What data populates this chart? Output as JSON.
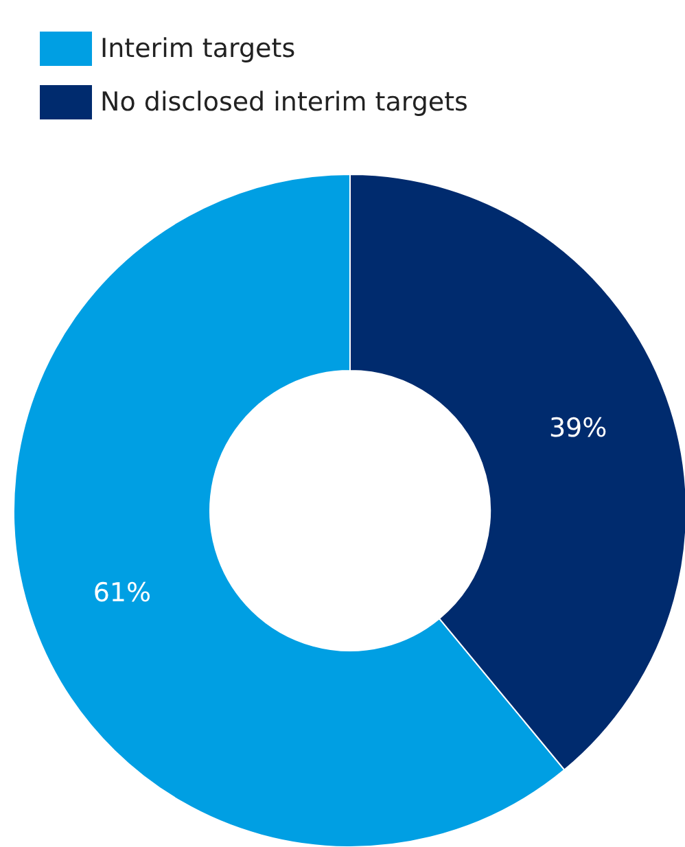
{
  "chart_data": {
    "type": "donut",
    "categories": [
      "Interim targets",
      "No disclosed interim targets"
    ],
    "values": [
      61,
      39
    ],
    "value_labels": [
      "61%",
      "39%"
    ],
    "colors": [
      "#009fe3",
      "#002b6e"
    ],
    "legend": "top left"
  }
}
